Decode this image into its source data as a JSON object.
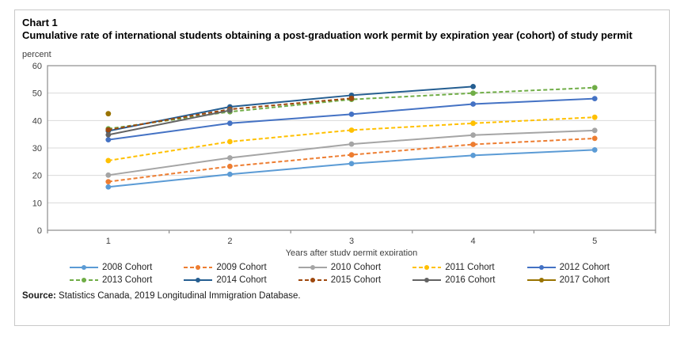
{
  "header": {
    "chart_label": "Chart 1",
    "title": "Cumulative rate of international students obtaining a post-graduation work permit by expiration year (cohort) of study permit",
    "unit_label": "percent"
  },
  "source": {
    "prefix": "Source:",
    "text": " Statistics Canada, 2019 Longitudinal Immigration Database."
  },
  "chart_data": {
    "type": "line",
    "x": [
      1,
      2,
      3,
      4,
      5
    ],
    "xlabel": "Years after study permit expiration",
    "ylabel": "percent",
    "ylim": [
      0,
      60
    ],
    "ytick_step": 10,
    "grid": true,
    "legend_position": "bottom",
    "series": [
      {
        "name": "2008 Cohort",
        "color": "#5B9BD5",
        "dash": false,
        "values": [
          15.8,
          20.4,
          24.3,
          27.3,
          29.3
        ]
      },
      {
        "name": "2009 Cohort",
        "color": "#ED7D31",
        "dash": true,
        "values": [
          17.7,
          23.3,
          27.5,
          31.3,
          33.5
        ]
      },
      {
        "name": "2010 Cohort",
        "color": "#A5A5A5",
        "dash": false,
        "values": [
          20.1,
          26.4,
          31.4,
          34.7,
          36.4
        ]
      },
      {
        "name": "2011 Cohort",
        "color": "#FFC000",
        "dash": true,
        "values": [
          25.4,
          32.3,
          36.5,
          39.0,
          41.2
        ]
      },
      {
        "name": "2012 Cohort",
        "color": "#4472C4",
        "dash": false,
        "values": [
          33.0,
          39.0,
          42.3,
          46.0,
          48.0
        ]
      },
      {
        "name": "2013 Cohort",
        "color": "#70AD47",
        "dash": true,
        "values": [
          37.0,
          43.2,
          47.7,
          50.0,
          52.0
        ]
      },
      {
        "name": "2014 Cohort",
        "color": "#255E91",
        "dash": false,
        "values": [
          36.2,
          45.0,
          49.2,
          52.4,
          null
        ]
      },
      {
        "name": "2015 Cohort",
        "color": "#9E480E",
        "dash": true,
        "values": [
          36.6,
          44.1,
          48.1,
          null,
          null
        ]
      },
      {
        "name": "2016 Cohort",
        "color": "#636363",
        "dash": false,
        "values": [
          34.8,
          43.7,
          null,
          null,
          null
        ]
      },
      {
        "name": "2017 Cohort",
        "color": "#997300",
        "dash": false,
        "values": [
          42.5,
          null,
          null,
          null,
          null
        ]
      }
    ],
    "axis_colors": {
      "border": "#8c8c8c",
      "gridline": "#d9d9d9",
      "tick_label": "#404040"
    }
  }
}
